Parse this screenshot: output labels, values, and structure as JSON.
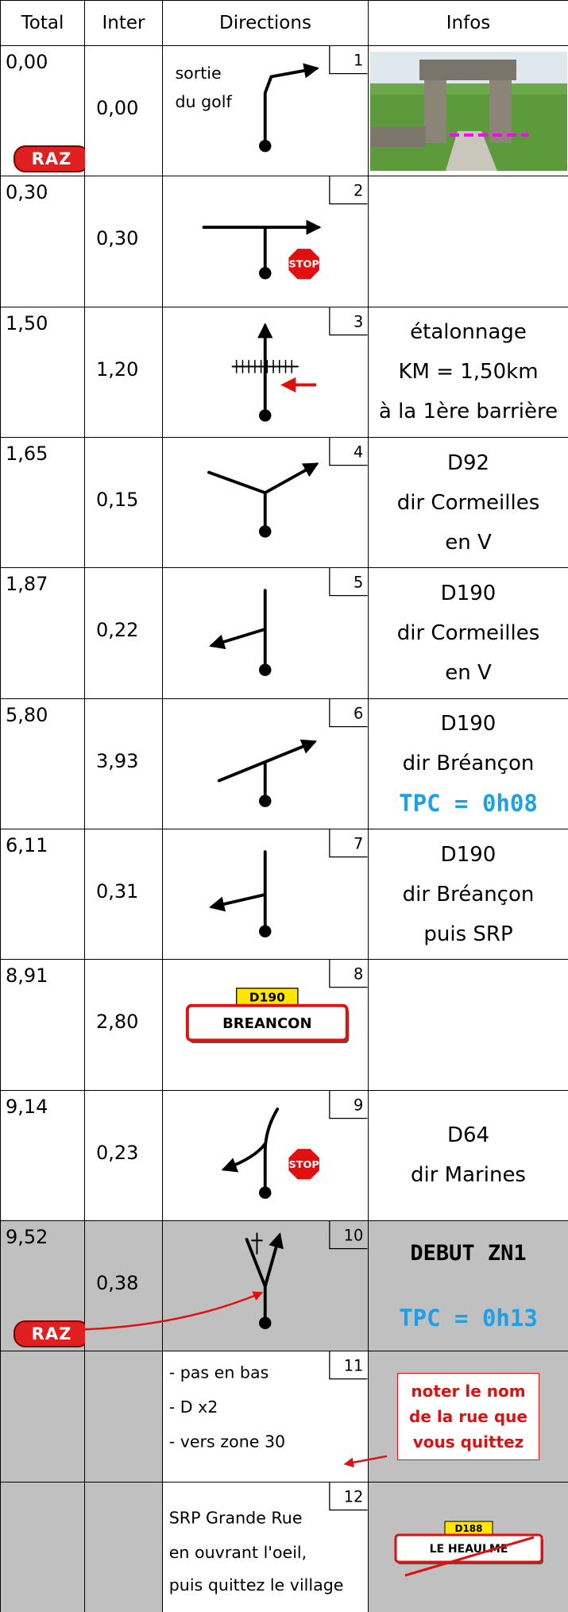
{
  "header": {
    "total": "Total",
    "inter": "Inter",
    "directions": "Directions",
    "infos": "Infos"
  },
  "rows": [
    {
      "number": "1",
      "total": "0,00",
      "inter": "0,00",
      "reset": "RAZ",
      "direction_text": [
        "sortie",
        "du golf"
      ]
    },
    {
      "number": "2",
      "total": "0,30",
      "inter": "0,30",
      "sign": "STOP"
    },
    {
      "number": "3",
      "total": "1,50",
      "inter": "1,20",
      "infos": [
        "étalonnage",
        "KM = 1,50km",
        "à la 1ère barrière"
      ]
    },
    {
      "number": "4",
      "total": "1,65",
      "inter": "0,15",
      "infos": [
        "D92",
        "dir Cormeilles",
        "en V"
      ]
    },
    {
      "number": "5",
      "total": "1,87",
      "inter": "0,22",
      "infos": [
        "D190",
        "dir Cormeilles",
        "en V"
      ]
    },
    {
      "number": "6",
      "total": "5,80",
      "inter": "3,93",
      "infos": [
        "D190",
        "dir Bréançon"
      ],
      "tpc": "TPC = 0h08"
    },
    {
      "number": "7",
      "total": "6,11",
      "inter": "0,31",
      "infos": [
        "D190",
        "dir Bréançon",
        "puis SRP"
      ]
    },
    {
      "number": "8",
      "total": "8,91",
      "inter": "2,80",
      "road_sign": {
        "road": "D190",
        "place": "BREANCON"
      }
    },
    {
      "number": "9",
      "total": "9,14",
      "inter": "0,23",
      "sign": "STOP",
      "infos": [
        "D64",
        "dir Marines"
      ]
    },
    {
      "number": "10",
      "total": "9,52",
      "inter": "0,38",
      "reset": "RAZ",
      "infos": [
        "DEBUT ZN1"
      ],
      "tpc": "TPC = 0h13"
    },
    {
      "number": "11",
      "direction_text": [
        "- pas en bas",
        "- D x2",
        "- vers zone 30"
      ],
      "note": [
        "noter le nom",
        "de la rue que",
        "vous quittez"
      ]
    },
    {
      "number": "12",
      "direction_text": [
        "SRP Grande Rue",
        "en ouvrant l'oeil,",
        "puis quittez le village"
      ],
      "road_sign": {
        "road": "D188",
        "place": "LE HEAULME"
      }
    }
  ]
}
